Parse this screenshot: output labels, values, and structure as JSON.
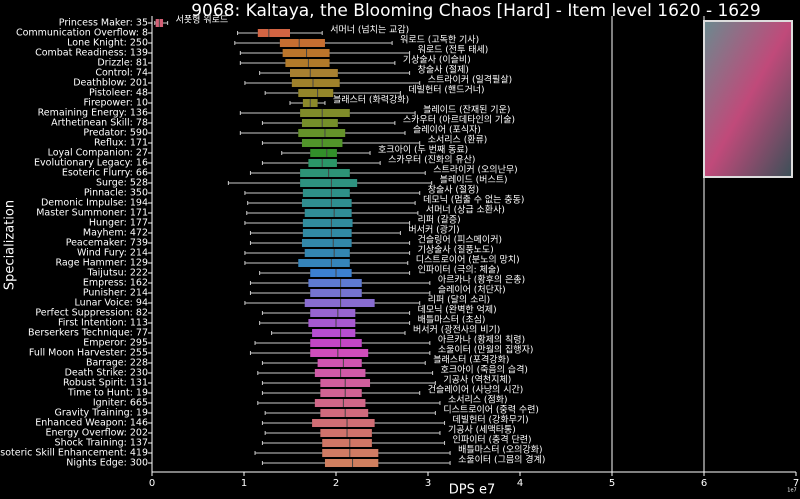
{
  "chart_data": {
    "type": "boxplot",
    "orientation": "horizontal",
    "title": "9068: Kaltaya, the Blooming Chaos [Hard] - Item level 1620 - 1629",
    "xlabel": "DPS e7",
    "ylabel": "Specialization",
    "x_offset_label": "1e7",
    "xlim": [
      0,
      7
    ],
    "xticks": [
      0,
      1,
      2,
      3,
      4,
      5,
      6,
      7
    ],
    "reference_lines": [
      5,
      6
    ],
    "categories": [
      "Princess Maker: 35",
      "Communication Overflow: 8",
      "Lone Knight: 250",
      "Combat Readiness: 139",
      "Drizzle: 81",
      "Control: 74",
      "Deathblow: 201",
      "Pistoleer: 48",
      "Firepower: 10",
      "Remaining Energy: 136",
      "Arthetinean Skill: 78",
      "Predator: 590",
      "Reflux: 171",
      "Loyal Companion: 27",
      "Evolutionary Legacy: 16",
      "Esoteric Flurry: 66",
      "Surge: 528",
      "Pinnacle: 350",
      "Demonic Impulse: 194",
      "Master Summoner: 171",
      "Hunger: 177",
      "Mayhem: 472",
      "Peacemaker: 739",
      "Wind Fury: 214",
      "Rage Hammer: 129",
      "Taijutsu: 222",
      "Empress: 162",
      "Punisher: 214",
      "Lunar Voice: 94",
      "Perfect Suppression: 82",
      "First Intention: 113",
      "Berserkers Technique: 77",
      "Emperor: 295",
      "Full Moon Harvester: 255",
      "Barrage: 228",
      "Death Strike: 230",
      "Robust Spirit: 131",
      "Time to Hunt: 19",
      "Igniter: 665",
      "Gravity Training: 19",
      "Enhanced Weapon: 146",
      "Energy Overflow: 202",
      "Shock Training: 137",
      "Esoteric Skill Enhancement: 419",
      "Nights Edge: 300"
    ],
    "annotations": [
      "서폿형 워로드",
      "서머너 (넘치는 교감)",
      "워로드 (고독한 기사)",
      "워로드 (전투 태세)",
      "기상술사 (이슬비)",
      "창술사 (절제)",
      "스트라이커 (일격필살)",
      "데빌헌터 (핸드거너)",
      "블래스터 (화력강화)",
      "블레이드 (잔재된 기운)",
      "스카우터 (아르데타인의 기술)",
      "슬레이어 (포식자)",
      "소서리스 (환류)",
      "호크아이 (두 번째 동료)",
      "스카우터 (진화의 유산)",
      "스트라이커 (오의난무)",
      "블레이드 (버스트)",
      "창술사 (절정)",
      "데모닉 (멈출 수 없는 충동)",
      "서머너 (상급 소환사)",
      "리퍼 (갈증)",
      "버서커 (광기)",
      "건슬링어 (피스메이커)",
      "기상술사 (질풍노도)",
      "디스트로이어 (분노의 망치)",
      "인파이터 (극의: 체술)",
      "아르카나 (황후의 은총)",
      "슬레이어 (처단자)",
      "리퍼 (달의 소리)",
      "데모닉 (완벽한 억제)",
      "배틀마스터 (초심)",
      "버서커 (광전사의 비기)",
      "아르카나 (황제의 칙령)",
      "소울이터 (만월의 집행자)",
      "블래스터 (포격강화)",
      "호크아이 (죽음의 습격)",
      "기공사 (역천지체)",
      "건슬레이어 (사냥의 시간)",
      "소서리스 (점화)",
      "디스트로이어 (중력 수련)",
      "데빌헌터 (강화무기)",
      "기공사 (세맥타통)",
      "인파이터 (충격 단련)",
      "배틀마스터 (오의강화)",
      "소울이터 (그믐의 경계)"
    ],
    "boxes": [
      [
        0.03,
        0.04,
        0.08,
        0.12,
        0.17
      ],
      [
        0.93,
        1.15,
        1.27,
        1.5,
        1.85
      ],
      [
        0.9,
        1.39,
        1.6,
        1.88,
        2.61
      ],
      [
        0.96,
        1.42,
        1.68,
        1.93,
        2.8
      ],
      [
        0.96,
        1.45,
        1.7,
        1.93,
        2.64
      ],
      [
        1.17,
        1.5,
        1.72,
        2.02,
        2.8
      ],
      [
        1.01,
        1.52,
        1.75,
        2.04,
        2.91
      ],
      [
        1.23,
        1.59,
        1.8,
        1.97,
        2.7
      ],
      [
        1.5,
        1.64,
        1.72,
        1.8,
        1.88
      ],
      [
        0.96,
        1.61,
        1.85,
        2.15,
        2.86
      ],
      [
        1.2,
        1.63,
        1.85,
        2.02,
        2.64
      ],
      [
        0.96,
        1.59,
        1.88,
        2.1,
        2.75
      ],
      [
        1.2,
        1.63,
        1.85,
        2.07,
        2.91
      ],
      [
        1.41,
        1.72,
        1.9,
        2.01,
        2.37
      ],
      [
        1.2,
        1.7,
        1.85,
        2.01,
        2.48
      ],
      [
        1.07,
        1.61,
        1.92,
        2.15,
        2.97
      ],
      [
        0.83,
        1.61,
        1.95,
        2.23,
        3.04
      ],
      [
        1.01,
        1.64,
        1.95,
        2.15,
        2.91
      ],
      [
        1.04,
        1.63,
        1.95,
        2.17,
        2.86
      ],
      [
        1.03,
        1.66,
        1.98,
        2.17,
        2.89
      ],
      [
        1.01,
        1.64,
        1.95,
        2.18,
        2.8
      ],
      [
        1.07,
        1.64,
        1.95,
        2.17,
        2.7
      ],
      [
        1.07,
        1.63,
        1.97,
        2.17,
        2.8
      ],
      [
        1.01,
        1.66,
        1.98,
        2.15,
        2.8
      ],
      [
        1.01,
        1.59,
        1.95,
        2.15,
        2.78
      ],
      [
        1.17,
        1.72,
        2.0,
        2.17,
        2.8
      ],
      [
        1.07,
        1.7,
        2.05,
        2.28,
        3.02
      ],
      [
        1.07,
        1.72,
        2.05,
        2.28,
        3.02
      ],
      [
        1.01,
        1.66,
        2.05,
        2.42,
        2.91
      ],
      [
        1.2,
        1.72,
        2.02,
        2.21,
        2.8
      ],
      [
        1.17,
        1.7,
        2.0,
        2.21,
        2.8
      ],
      [
        1.3,
        1.74,
        2.05,
        2.21,
        2.75
      ],
      [
        1.12,
        1.72,
        2.05,
        2.28,
        3.02
      ],
      [
        1.07,
        1.72,
        2.02,
        2.35,
        3.02
      ],
      [
        1.2,
        1.8,
        2.08,
        2.28,
        2.97
      ],
      [
        1.15,
        1.77,
        2.05,
        2.32,
        3.05
      ],
      [
        1.2,
        1.83,
        2.1,
        2.37,
        3.08
      ],
      [
        1.2,
        1.83,
        2.1,
        2.28,
        2.91
      ],
      [
        1.15,
        1.77,
        2.08,
        2.32,
        3.13
      ],
      [
        1.23,
        1.83,
        2.1,
        2.35,
        3.08
      ],
      [
        1.2,
        1.74,
        2.12,
        2.42,
        3.18
      ],
      [
        1.23,
        1.83,
        2.12,
        2.39,
        3.13
      ],
      [
        1.2,
        1.85,
        2.15,
        2.39,
        3.18
      ],
      [
        1.12,
        1.85,
        2.15,
        2.46,
        3.24
      ],
      [
        1.2,
        1.88,
        2.18,
        2.46,
        3.24
      ]
    ],
    "colors": [
      "#f77189",
      "#f7754f",
      "#e9813a",
      "#dc8932",
      "#d08f31",
      "#c5963a",
      "#bb9832",
      "#ae9d31",
      "#a3a131",
      "#97a431",
      "#89a831",
      "#77ab31",
      "#5fae31",
      "#3ba831",
      "#33b07a",
      "#35ad8b",
      "#36ab97",
      "#36a9a0",
      "#37a7a9",
      "#38a6b1",
      "#39a4b8",
      "#3aa2bf",
      "#3ba0c7",
      "#3c9ed0",
      "#3e9bdb",
      "#4697f4",
      "#6f8ff6",
      "#8a87f4",
      "#a07ff4",
      "#b375f4",
      "#c468f4",
      "#d65af4",
      "#e552e8",
      "#f45bdc",
      "#f564cf",
      "#f56ac4",
      "#f66fb9",
      "#f674ad",
      "#f679a0",
      "#f67d93",
      "#f58189",
      "#f5867f",
      "#f58b78",
      "#f59075",
      "#f59570"
    ]
  }
}
